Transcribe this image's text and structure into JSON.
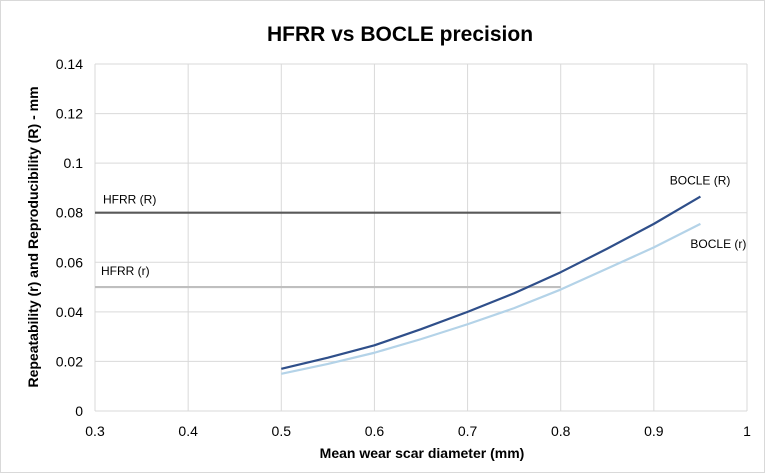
{
  "chart_data": {
    "type": "line",
    "title": "HFRR vs BOCLE precision",
    "xlabel": "Mean wear scar diameter (mm)",
    "ylabel": "Repeatability (r) and Reproducibility (R) - mm",
    "xlim": [
      0.3,
      1.0
    ],
    "ylim": [
      0,
      0.14
    ],
    "x_ticks": [
      "0.3",
      "0.4",
      "0.5",
      "0.6",
      "0.7",
      "0.8",
      "0.9",
      "1"
    ],
    "y_ticks": [
      "0",
      "0.02",
      "0.04",
      "0.06",
      "0.08",
      "0.1",
      "0.12",
      "0.14"
    ],
    "grid": true,
    "legend": "none",
    "series": [
      {
        "name": "HFRR (R)",
        "color": "#595959",
        "x": [
          0.3,
          0.8
        ],
        "y": [
          0.08,
          0.08
        ]
      },
      {
        "name": "HFRR (r)",
        "color": "#bfbfbf",
        "x": [
          0.3,
          0.8
        ],
        "y": [
          0.05,
          0.05
        ]
      },
      {
        "name": "BOCLE (R)",
        "color": "#2f4f8a",
        "x": [
          0.5,
          0.55,
          0.6,
          0.65,
          0.7,
          0.75,
          0.8,
          0.85,
          0.9,
          0.95
        ],
        "y": [
          0.017,
          0.0215,
          0.0265,
          0.033,
          0.04,
          0.0475,
          0.056,
          0.0655,
          0.0755,
          0.0865
        ]
      },
      {
        "name": "BOCLE (r)",
        "color": "#b4d3e8",
        "x": [
          0.5,
          0.55,
          0.6,
          0.65,
          0.7,
          0.75,
          0.8,
          0.85,
          0.9,
          0.95
        ],
        "y": [
          0.015,
          0.019,
          0.0235,
          0.029,
          0.035,
          0.0415,
          0.049,
          0.0575,
          0.066,
          0.0755
        ]
      }
    ]
  }
}
